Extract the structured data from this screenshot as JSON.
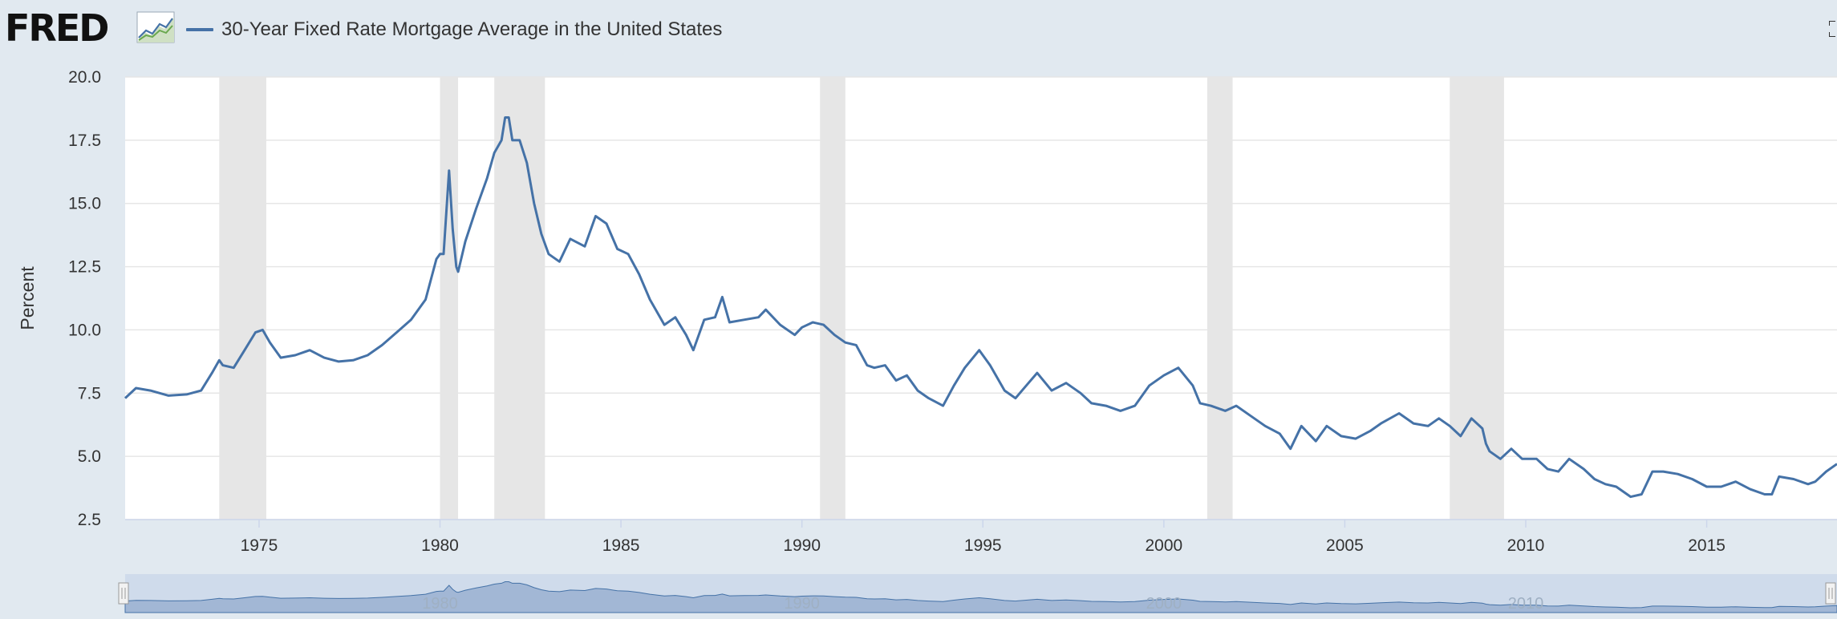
{
  "header": {
    "logo": "FRED",
    "logo_icon": "line-chart-icon",
    "fullscreen_icon": "fullscreen-icon"
  },
  "colors": {
    "series": "#4572a7",
    "recession": "#e6e6e6",
    "plot_bg": "#ffffff",
    "page_bg": "#e1e9f0",
    "navigator_fill": "#c3d2e6"
  },
  "chart_data": {
    "type": "line",
    "title": "",
    "xlabel": "",
    "ylabel": "Percent",
    "ylim": [
      2.5,
      20.0
    ],
    "xlim": [
      1971.3,
      2018.6
    ],
    "yticks": [
      "20.0",
      "17.5",
      "15.0",
      "12.5",
      "10.0",
      "7.5",
      "5.0",
      "2.5"
    ],
    "xticks": [
      "1975",
      "1980",
      "1985",
      "1990",
      "1995",
      "2000",
      "2005",
      "2010",
      "2015"
    ],
    "grid": true,
    "legend": "top-left",
    "recessions": [
      [
        1973.9,
        1975.2
      ],
      [
        1980.0,
        1980.5
      ],
      [
        1981.5,
        1982.9
      ],
      [
        1990.5,
        1991.2
      ],
      [
        2001.2,
        2001.9
      ],
      [
        2007.9,
        2009.4
      ]
    ],
    "series": [
      {
        "name": "30-Year Fixed Rate Mortgage Average in the United States",
        "x": [
          1971.3,
          1971.6,
          1972.0,
          1972.5,
          1973.0,
          1973.4,
          1973.7,
          1973.9,
          1974.0,
          1974.3,
          1974.6,
          1974.9,
          1975.1,
          1975.3,
          1975.6,
          1976.0,
          1976.4,
          1976.8,
          1977.2,
          1977.6,
          1978.0,
          1978.4,
          1978.8,
          1979.2,
          1979.6,
          1979.9,
          1980.0,
          1980.1,
          1980.25,
          1980.35,
          1980.45,
          1980.5,
          1980.7,
          1981.0,
          1981.3,
          1981.5,
          1981.7,
          1981.8,
          1981.9,
          1982.0,
          1982.2,
          1982.4,
          1982.6,
          1982.8,
          1983.0,
          1983.3,
          1983.6,
          1984.0,
          1984.3,
          1984.6,
          1984.9,
          1985.2,
          1985.5,
          1985.8,
          1986.2,
          1986.5,
          1986.8,
          1987.0,
          1987.3,
          1987.6,
          1987.8,
          1988.0,
          1988.4,
          1988.8,
          1989.0,
          1989.4,
          1989.8,
          1990.0,
          1990.3,
          1990.6,
          1990.9,
          1991.2,
          1991.5,
          1991.8,
          1992.0,
          1992.3,
          1992.6,
          1992.9,
          1993.2,
          1993.5,
          1993.9,
          1994.2,
          1994.5,
          1994.9,
          1995.2,
          1995.6,
          1995.9,
          1996.2,
          1996.5,
          1996.9,
          1997.3,
          1997.7,
          1998.0,
          1998.4,
          1998.8,
          1999.2,
          1999.6,
          2000.0,
          2000.4,
          2000.8,
          2001.0,
          2001.3,
          2001.7,
          2002.0,
          2002.4,
          2002.8,
          2003.2,
          2003.5,
          2003.8,
          2004.2,
          2004.5,
          2004.9,
          2005.3,
          2005.7,
          2006.0,
          2006.5,
          2006.9,
          2007.3,
          2007.6,
          2007.9,
          2008.2,
          2008.5,
          2008.8,
          2008.9,
          2009.0,
          2009.3,
          2009.6,
          2009.9,
          2010.3,
          2010.6,
          2010.9,
          2011.2,
          2011.6,
          2011.9,
          2012.2,
          2012.5,
          2012.9,
          2013.2,
          2013.5,
          2013.8,
          2014.2,
          2014.6,
          2015.0,
          2015.4,
          2015.8,
          2016.2,
          2016.6,
          2016.8,
          2017.0,
          2017.4,
          2017.8,
          2018.0,
          2018.3,
          2018.6
        ],
        "values": [
          7.3,
          7.7,
          7.6,
          7.4,
          7.45,
          7.6,
          8.3,
          8.8,
          8.6,
          8.5,
          9.2,
          9.9,
          10.0,
          9.5,
          8.9,
          9.0,
          9.2,
          8.9,
          8.75,
          8.8,
          9.0,
          9.4,
          9.9,
          10.4,
          11.2,
          12.8,
          13.0,
          13.0,
          16.3,
          14.0,
          12.5,
          12.3,
          13.5,
          14.8,
          16.0,
          17.0,
          17.5,
          18.4,
          18.4,
          17.5,
          17.5,
          16.6,
          15.0,
          13.8,
          13.0,
          12.7,
          13.6,
          13.3,
          14.5,
          14.2,
          13.2,
          13.0,
          12.2,
          11.2,
          10.2,
          10.5,
          9.8,
          9.2,
          10.4,
          10.5,
          11.3,
          10.3,
          10.4,
          10.5,
          10.8,
          10.2,
          9.8,
          10.1,
          10.3,
          10.2,
          9.8,
          9.5,
          9.4,
          8.6,
          8.5,
          8.6,
          8.0,
          8.2,
          7.6,
          7.3,
          7.0,
          7.8,
          8.5,
          9.2,
          8.6,
          7.6,
          7.3,
          7.8,
          8.3,
          7.6,
          7.9,
          7.5,
          7.1,
          7.0,
          6.8,
          7.0,
          7.8,
          8.2,
          8.5,
          7.8,
          7.1,
          7.0,
          6.8,
          7.0,
          6.6,
          6.2,
          5.9,
          5.3,
          6.2,
          5.6,
          6.2,
          5.8,
          5.7,
          6.0,
          6.3,
          6.7,
          6.3,
          6.2,
          6.5,
          6.2,
          5.8,
          6.5,
          6.1,
          5.5,
          5.2,
          4.9,
          5.3,
          4.9,
          4.9,
          4.5,
          4.4,
          4.9,
          4.5,
          4.1,
          3.9,
          3.8,
          3.4,
          3.5,
          4.4,
          4.4,
          4.3,
          4.1,
          3.8,
          3.8,
          4.0,
          3.7,
          3.5,
          3.5,
          4.2,
          4.1,
          3.9,
          4.0,
          4.4,
          4.7
        ]
      }
    ],
    "navigator": {
      "labels": [
        "1980",
        "1990",
        "2000",
        "2010"
      ],
      "label_years": [
        1980,
        1990,
        2000,
        2010
      ],
      "range": [
        1971.3,
        2018.6
      ]
    }
  }
}
